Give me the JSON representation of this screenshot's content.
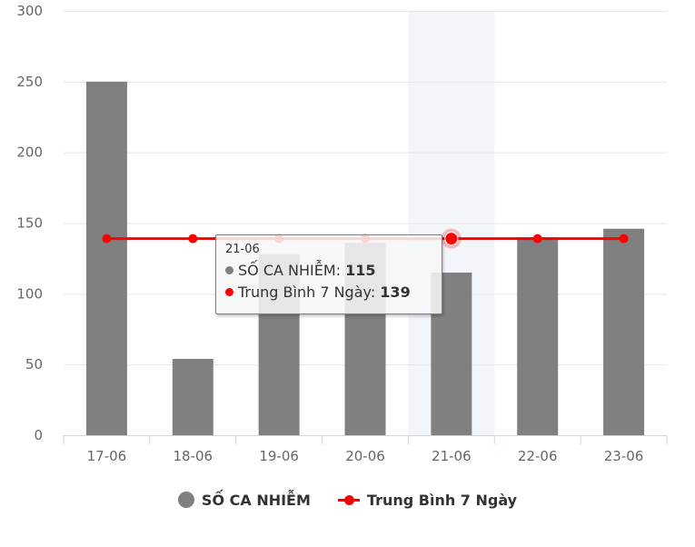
{
  "chart_data": {
    "type": "bar",
    "categories": [
      "17-06",
      "18-06",
      "19-06",
      "20-06",
      "21-06",
      "22-06",
      "23-06"
    ],
    "series": [
      {
        "name": "SỐ CA NHIỄM",
        "type": "bar",
        "color": "#808080",
        "values": [
          250,
          54,
          128,
          136,
          115,
          140,
          146
        ]
      },
      {
        "name": "Trung Bình 7 Ngày",
        "type": "line",
        "color": "#ff0000",
        "values": [
          139,
          139,
          139,
          139,
          139,
          139,
          139
        ]
      }
    ],
    "yticks": [
      "0",
      "50",
      "100",
      "150",
      "200",
      "250",
      "300"
    ],
    "ylim": [
      0,
      300
    ],
    "grid": true,
    "legend_position": "bottom",
    "highlight_category": "21-06"
  },
  "tooltip": {
    "header": "21-06",
    "rows": [
      {
        "label": "SỐ CA NHIỄM: ",
        "value": "115",
        "color": "#808080"
      },
      {
        "label": "Trung Bình 7 Ngày: ",
        "value": "139",
        "color": "#ff0000"
      }
    ]
  },
  "legend": [
    {
      "label": "SỐ CA NHIỄM",
      "color": "#808080",
      "icon": "circle-icon"
    },
    {
      "label": "Trung Bình 7 Ngày",
      "color": "#ff0000",
      "icon": "line-marker-icon"
    }
  ]
}
